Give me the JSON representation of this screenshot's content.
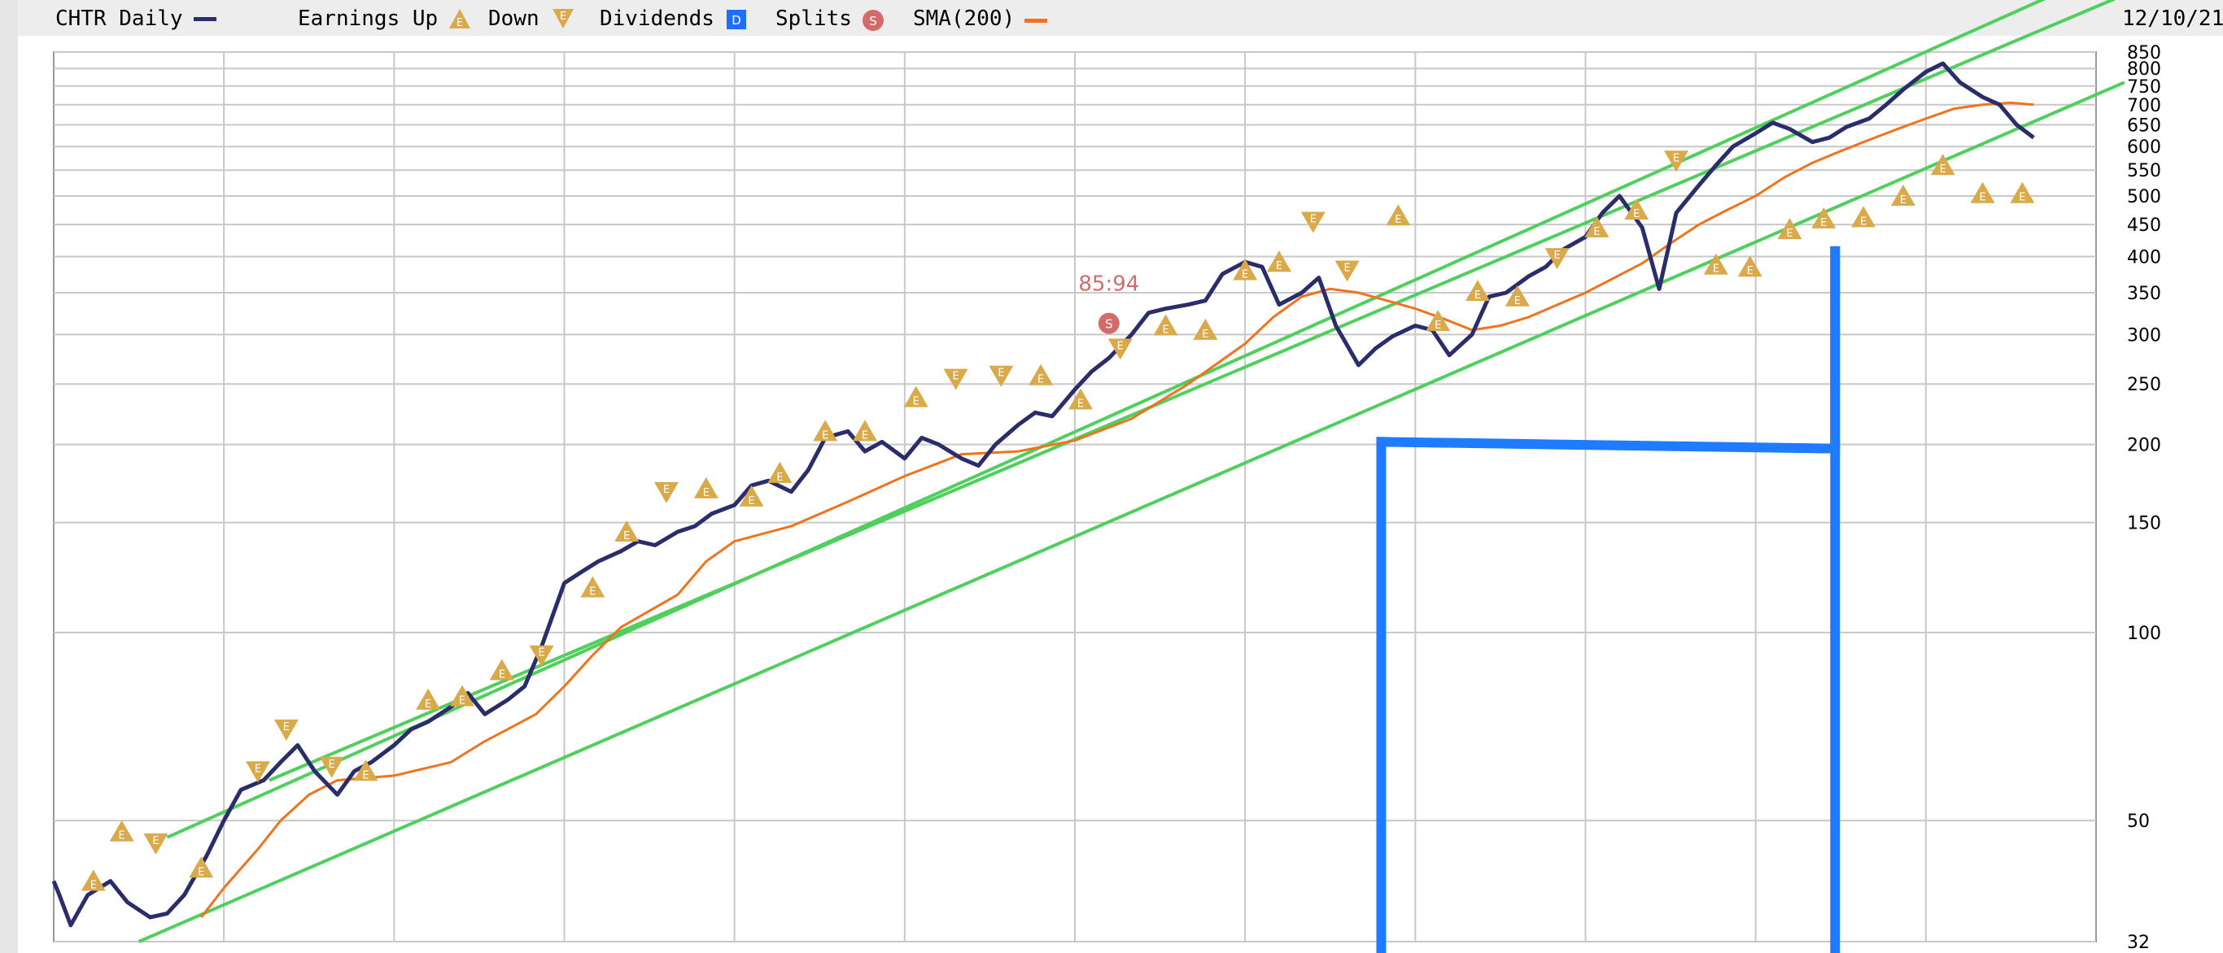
{
  "legend": {
    "symbol": "CHTR Daily",
    "earnings_up": "Earnings Up",
    "earnings_down": "Down",
    "dividends": "Dividends",
    "splits": "Splits",
    "sma": "SMA(200)",
    "date": "12/10/21",
    "dividend_glyph": "D",
    "split_glyph": "S",
    "earnings_glyph": "E"
  },
  "split_annotation": "85:94",
  "colors": {
    "price": "#2b2d6b",
    "sma": "#f0731e",
    "channel": "#4fcf5c",
    "annotation": "#1f7bff",
    "earnings": "#d9a94a",
    "dividend": "#1e6fff",
    "split": "#d46b6b",
    "grid": "#c8c8c8"
  },
  "chart_data": {
    "type": "line",
    "title": "CHTR Daily",
    "y_scale": "log",
    "ylim": [
      32,
      850
    ],
    "y_ticks": [
      32,
      50,
      100,
      150,
      200,
      250,
      300,
      350,
      400,
      450,
      500,
      550,
      600,
      650,
      700,
      750,
      800,
      850
    ],
    "y_tick_labels": [
      "32",
      "50",
      "100",
      "150",
      "200",
      "250",
      "300",
      "350",
      "400",
      "450",
      "500",
      "550",
      "600",
      "650",
      "700",
      "750",
      "800",
      "850"
    ],
    "grid": true,
    "x_gridlines": 12,
    "series": [
      {
        "name": "CHTR Daily",
        "points": [
          [
            0,
            40
          ],
          [
            0.1,
            38
          ],
          [
            0.3,
            34
          ],
          [
            0.6,
            38
          ],
          [
            1.0,
            40
          ],
          [
            1.3,
            37
          ],
          [
            1.7,
            35
          ],
          [
            2.0,
            35.5
          ],
          [
            2.3,
            38
          ],
          [
            2.7,
            44
          ],
          [
            3.0,
            50
          ],
          [
            3.3,
            56
          ],
          [
            3.7,
            58
          ],
          [
            4.0,
            62
          ],
          [
            4.3,
            66
          ],
          [
            4.6,
            60
          ],
          [
            5.0,
            55
          ],
          [
            5.3,
            60
          ],
          [
            5.6,
            62
          ],
          [
            6.0,
            66
          ],
          [
            6.3,
            70
          ],
          [
            6.6,
            72
          ],
          [
            7.0,
            76
          ],
          [
            7.3,
            80
          ],
          [
            7.6,
            74
          ],
          [
            8.0,
            78
          ],
          [
            8.3,
            82
          ],
          [
            8.6,
            95
          ],
          [
            9.0,
            120
          ],
          [
            9.3,
            125
          ],
          [
            9.6,
            130
          ],
          [
            10.0,
            135
          ],
          [
            10.3,
            140
          ],
          [
            10.6,
            138
          ],
          [
            11.0,
            145
          ],
          [
            11.3,
            148
          ],
          [
            11.6,
            155
          ],
          [
            12.0,
            160
          ],
          [
            12.3,
            172
          ],
          [
            12.6,
            175
          ],
          [
            13.0,
            168
          ],
          [
            13.3,
            182
          ],
          [
            13.6,
            205
          ],
          [
            14.0,
            210
          ],
          [
            14.3,
            195
          ],
          [
            14.6,
            202
          ],
          [
            15.0,
            190
          ],
          [
            15.3,
            205
          ],
          [
            15.6,
            200
          ],
          [
            16.0,
            190
          ],
          [
            16.3,
            185
          ],
          [
            16.6,
            200
          ],
          [
            17.0,
            215
          ],
          [
            17.3,
            225
          ],
          [
            17.6,
            222
          ],
          [
            18.0,
            245
          ],
          [
            18.3,
            262
          ],
          [
            18.6,
            275
          ],
          [
            19.0,
            300
          ],
          [
            19.3,
            325
          ],
          [
            19.6,
            330
          ],
          [
            20.0,
            335
          ],
          [
            20.3,
            340
          ],
          [
            20.6,
            375
          ],
          [
            21.0,
            392
          ],
          [
            21.3,
            385
          ],
          [
            21.6,
            335
          ],
          [
            22.0,
            350
          ],
          [
            22.3,
            370
          ],
          [
            22.6,
            310
          ],
          [
            23.0,
            268
          ],
          [
            23.3,
            285
          ],
          [
            23.6,
            298
          ],
          [
            24.0,
            310
          ],
          [
            24.3,
            305
          ],
          [
            24.6,
            278
          ],
          [
            25.0,
            300
          ],
          [
            25.3,
            345
          ],
          [
            25.6,
            350
          ],
          [
            26.0,
            372
          ],
          [
            26.3,
            385
          ],
          [
            26.6,
            410
          ],
          [
            27.0,
            430
          ],
          [
            27.3,
            470
          ],
          [
            27.6,
            500
          ],
          [
            28.0,
            445
          ],
          [
            28.3,
            355
          ],
          [
            28.6,
            470
          ],
          [
            29.0,
            520
          ],
          [
            29.3,
            560
          ],
          [
            29.6,
            600
          ],
          [
            30.0,
            630
          ],
          [
            30.3,
            655
          ],
          [
            30.6,
            640
          ],
          [
            31.0,
            610
          ],
          [
            31.3,
            620
          ],
          [
            31.6,
            645
          ],
          [
            32.0,
            665
          ],
          [
            32.3,
            700
          ],
          [
            32.6,
            740
          ],
          [
            33.0,
            790
          ],
          [
            33.3,
            815
          ],
          [
            33.6,
            760
          ],
          [
            34.0,
            720
          ],
          [
            34.3,
            700
          ],
          [
            34.6,
            650
          ],
          [
            34.9,
            620
          ]
        ]
      },
      {
        "name": "SMA(200)",
        "points": [
          [
            2.6,
            35
          ],
          [
            3.0,
            39
          ],
          [
            3.6,
            45
          ],
          [
            4.0,
            50
          ],
          [
            4.5,
            55
          ],
          [
            5.0,
            58
          ],
          [
            6.0,
            59
          ],
          [
            7.0,
            62
          ],
          [
            7.6,
            67
          ],
          [
            8.0,
            70
          ],
          [
            8.5,
            74
          ],
          [
            9.0,
            82
          ],
          [
            9.5,
            92
          ],
          [
            10.0,
            102
          ],
          [
            11.0,
            115
          ],
          [
            11.5,
            130
          ],
          [
            12.0,
            140
          ],
          [
            13.0,
            148
          ],
          [
            14.0,
            162
          ],
          [
            15.0,
            178
          ],
          [
            16.0,
            193
          ],
          [
            17.0,
            195
          ],
          [
            18.0,
            203
          ],
          [
            19.0,
            220
          ],
          [
            20.0,
            250
          ],
          [
            21.0,
            290
          ],
          [
            21.5,
            320
          ],
          [
            22.0,
            345
          ],
          [
            22.5,
            355
          ],
          [
            23.0,
            350
          ],
          [
            23.5,
            340
          ],
          [
            24.0,
            330
          ],
          [
            24.5,
            318
          ],
          [
            25.0,
            305
          ],
          [
            25.5,
            310
          ],
          [
            26.0,
            320
          ],
          [
            27.0,
            350
          ],
          [
            28.0,
            390
          ],
          [
            28.5,
            420
          ],
          [
            29.0,
            450
          ],
          [
            29.5,
            475
          ],
          [
            30.0,
            500
          ],
          [
            30.5,
            535
          ],
          [
            31.0,
            565
          ],
          [
            31.5,
            590
          ],
          [
            32.0,
            615
          ],
          [
            32.5,
            640
          ],
          [
            33.0,
            665
          ],
          [
            33.5,
            690
          ],
          [
            34.0,
            700
          ],
          [
            34.5,
            705
          ],
          [
            34.9,
            700
          ]
        ]
      }
    ],
    "channel_lines": [
      {
        "x0": 2.0,
        "y0": 47,
        "x1": 36.5,
        "y1": 1180
      },
      {
        "x0": 3.8,
        "y0": 58,
        "x1": 36.5,
        "y1": 1050
      },
      {
        "x0": 1.5,
        "y0": 32,
        "x1": 36.5,
        "y1": 760
      }
    ],
    "annotation_lines": [
      {
        "x0": 23.4,
        "y0": 31,
        "x1": 23.4,
        "y1": 202
      },
      {
        "x0": 23.4,
        "y0": 202,
        "x1": 31.4,
        "y1": 197
      },
      {
        "x0": 31.4,
        "y0": 197,
        "x1": 31.4,
        "y1": 408
      },
      {
        "x0": 31.4,
        "y0": 408,
        "x1": 31.4,
        "y1": 31
      }
    ],
    "earnings_markers": [
      {
        "x": 0.7,
        "y": 40,
        "dir": "up"
      },
      {
        "x": 1.2,
        "y": 48,
        "dir": "up"
      },
      {
        "x": 1.8,
        "y": 46,
        "dir": "down"
      },
      {
        "x": 2.6,
        "y": 42,
        "dir": "up"
      },
      {
        "x": 3.6,
        "y": 60,
        "dir": "down"
      },
      {
        "x": 4.1,
        "y": 70,
        "dir": "down"
      },
      {
        "x": 4.9,
        "y": 61,
        "dir": "down"
      },
      {
        "x": 5.5,
        "y": 60,
        "dir": "up"
      },
      {
        "x": 6.6,
        "y": 78,
        "dir": "up"
      },
      {
        "x": 7.2,
        "y": 79,
        "dir": "up"
      },
      {
        "x": 7.9,
        "y": 87,
        "dir": "up"
      },
      {
        "x": 8.6,
        "y": 92,
        "dir": "down"
      },
      {
        "x": 9.5,
        "y": 118,
        "dir": "up"
      },
      {
        "x": 10.1,
        "y": 145,
        "dir": "up"
      },
      {
        "x": 10.8,
        "y": 168,
        "dir": "down"
      },
      {
        "x": 11.5,
        "y": 170,
        "dir": "up"
      },
      {
        "x": 12.3,
        "y": 165,
        "dir": "up"
      },
      {
        "x": 12.8,
        "y": 180,
        "dir": "up"
      },
      {
        "x": 13.6,
        "y": 210,
        "dir": "up"
      },
      {
        "x": 14.3,
        "y": 210,
        "dir": "up"
      },
      {
        "x": 15.2,
        "y": 238,
        "dir": "up"
      },
      {
        "x": 15.9,
        "y": 255,
        "dir": "down"
      },
      {
        "x": 16.7,
        "y": 258,
        "dir": "down"
      },
      {
        "x": 17.4,
        "y": 258,
        "dir": "up"
      },
      {
        "x": 18.1,
        "y": 236,
        "dir": "up"
      },
      {
        "x": 18.8,
        "y": 285,
        "dir": "down"
      },
      {
        "x": 19.6,
        "y": 310,
        "dir": "up"
      },
      {
        "x": 20.3,
        "y": 305,
        "dir": "up"
      },
      {
        "x": 21.0,
        "y": 380,
        "dir": "up"
      },
      {
        "x": 21.6,
        "y": 392,
        "dir": "up"
      },
      {
        "x": 22.2,
        "y": 455,
        "dir": "down"
      },
      {
        "x": 22.8,
        "y": 380,
        "dir": "down"
      },
      {
        "x": 23.7,
        "y": 465,
        "dir": "up"
      },
      {
        "x": 24.4,
        "y": 315,
        "dir": "up"
      },
      {
        "x": 25.1,
        "y": 352,
        "dir": "up"
      },
      {
        "x": 25.8,
        "y": 345,
        "dir": "up"
      },
      {
        "x": 26.5,
        "y": 398,
        "dir": "down"
      },
      {
        "x": 27.2,
        "y": 445,
        "dir": "up"
      },
      {
        "x": 27.9,
        "y": 475,
        "dir": "up"
      },
      {
        "x": 28.6,
        "y": 570,
        "dir": "down"
      },
      {
        "x": 29.3,
        "y": 388,
        "dir": "up"
      },
      {
        "x": 29.9,
        "y": 385,
        "dir": "up"
      },
      {
        "x": 30.6,
        "y": 442,
        "dir": "up"
      },
      {
        "x": 31.2,
        "y": 460,
        "dir": "up"
      },
      {
        "x": 31.9,
        "y": 462,
        "dir": "up"
      },
      {
        "x": 32.6,
        "y": 500,
        "dir": "up"
      },
      {
        "x": 33.3,
        "y": 560,
        "dir": "up"
      },
      {
        "x": 34.0,
        "y": 505,
        "dir": "up"
      },
      {
        "x": 34.7,
        "y": 505,
        "dir": "up"
      }
    ],
    "split_marker": {
      "x": 18.6,
      "y": 340
    }
  }
}
